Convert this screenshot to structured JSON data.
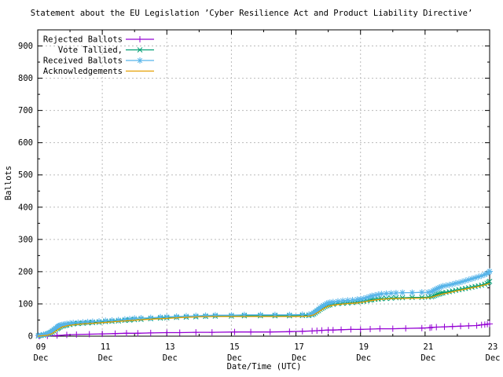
{
  "chart_data": {
    "type": "line",
    "title": "Statement about the EU Legislation ’Cyber Resilience Act and Product Liability Directive’",
    "xlabel": "Date/Time (UTC)",
    "ylabel": "Ballots",
    "xlim_days": [
      0,
      14
    ],
    "ylim": [
      0,
      950
    ],
    "grid": true,
    "legend_position": "inside top-left",
    "grid_color": "#bbbbbb",
    "border_color": "#000000",
    "x_ticks": [
      {
        "day": 0,
        "label": "09",
        "sublabel": "Dec"
      },
      {
        "day": 2,
        "label": "11",
        "sublabel": "Dec"
      },
      {
        "day": 4,
        "label": "13",
        "sublabel": "Dec"
      },
      {
        "day": 6,
        "label": "15",
        "sublabel": "Dec"
      },
      {
        "day": 8,
        "label": "17",
        "sublabel": "Dec"
      },
      {
        "day": 10,
        "label": "19",
        "sublabel": "Dec"
      },
      {
        "day": 12,
        "label": "21",
        "sublabel": "Dec"
      },
      {
        "day": 14,
        "label": "23",
        "sublabel": "Dec"
      }
    ],
    "x_minor_days": [
      1,
      3,
      5,
      7,
      9,
      11,
      13
    ],
    "y_ticks": [
      0,
      100,
      200,
      300,
      400,
      500,
      600,
      700,
      800,
      900
    ],
    "y_minor": [
      50,
      150,
      250,
      350,
      450,
      550,
      650,
      750,
      850
    ],
    "series": [
      {
        "name": "Rejected Ballots",
        "color": "#9400D3",
        "marker": "plus",
        "points": [
          [
            0.05,
            0
          ],
          [
            0.3,
            1
          ],
          [
            0.6,
            2
          ],
          [
            0.9,
            4
          ],
          [
            1.2,
            5
          ],
          [
            1.6,
            6
          ],
          [
            2.0,
            7
          ],
          [
            2.4,
            8
          ],
          [
            2.75,
            9
          ],
          [
            3.1,
            9
          ],
          [
            3.5,
            10
          ],
          [
            4.0,
            11
          ],
          [
            4.4,
            11
          ],
          [
            4.9,
            12
          ],
          [
            5.4,
            12
          ],
          [
            6.1,
            13
          ],
          [
            6.6,
            13
          ],
          [
            7.2,
            13
          ],
          [
            7.8,
            14
          ],
          [
            8.2,
            15
          ],
          [
            8.5,
            16
          ],
          [
            8.65,
            17
          ],
          [
            8.8,
            18
          ],
          [
            9.0,
            19
          ],
          [
            9.15,
            19
          ],
          [
            9.4,
            20
          ],
          [
            9.7,
            21
          ],
          [
            10.0,
            21
          ],
          [
            10.3,
            22
          ],
          [
            10.6,
            23
          ],
          [
            11.0,
            23
          ],
          [
            11.4,
            24
          ],
          [
            11.9,
            25
          ],
          [
            12.15,
            26
          ],
          [
            12.2,
            27
          ],
          [
            12.35,
            28
          ],
          [
            12.6,
            29
          ],
          [
            12.85,
            30
          ],
          [
            13.1,
            31
          ],
          [
            13.35,
            32
          ],
          [
            13.6,
            33
          ],
          [
            13.75,
            35
          ],
          [
            13.85,
            36
          ],
          [
            13.93,
            37
          ],
          [
            14.0,
            38
          ]
        ]
      },
      {
        "name": "Vote Tallied,",
        "color": "#009E73",
        "marker": "cross",
        "points": [
          [
            0.02,
            1
          ],
          [
            0.1,
            2
          ],
          [
            0.18,
            3
          ],
          [
            0.25,
            5
          ],
          [
            0.3,
            6
          ],
          [
            0.35,
            8
          ],
          [
            0.4,
            10
          ],
          [
            0.45,
            13
          ],
          [
            0.5,
            16
          ],
          [
            0.55,
            20
          ],
          [
            0.6,
            23
          ],
          [
            0.63,
            25
          ],
          [
            0.66,
            27
          ],
          [
            0.7,
            29
          ],
          [
            0.75,
            31
          ],
          [
            0.8,
            32
          ],
          [
            0.85,
            33
          ],
          [
            0.9,
            34
          ],
          [
            1.0,
            36
          ],
          [
            1.1,
            38
          ],
          [
            1.25,
            39
          ],
          [
            1.4,
            40
          ],
          [
            1.55,
            41
          ],
          [
            1.7,
            42
          ],
          [
            1.9,
            43
          ],
          [
            2.1,
            45
          ],
          [
            2.3,
            46
          ],
          [
            2.5,
            47
          ],
          [
            2.7,
            49
          ],
          [
            2.85,
            50
          ],
          [
            3.0,
            51
          ],
          [
            3.2,
            52
          ],
          [
            3.5,
            54
          ],
          [
            3.8,
            56
          ],
          [
            4.0,
            57
          ],
          [
            4.3,
            58
          ],
          [
            4.6,
            59
          ],
          [
            4.9,
            60
          ],
          [
            5.2,
            61
          ],
          [
            5.5,
            62
          ],
          [
            6.0,
            62
          ],
          [
            6.4,
            63
          ],
          [
            6.9,
            63
          ],
          [
            7.35,
            63
          ],
          [
            7.8,
            63
          ],
          [
            8.2,
            64
          ],
          [
            8.4,
            64
          ],
          [
            8.5,
            66
          ],
          [
            8.55,
            69
          ],
          [
            8.6,
            72
          ],
          [
            8.65,
            76
          ],
          [
            8.7,
            79
          ],
          [
            8.75,
            83
          ],
          [
            8.8,
            86
          ],
          [
            8.85,
            89
          ],
          [
            8.9,
            92
          ],
          [
            8.95,
            94
          ],
          [
            9.0,
            96
          ],
          [
            9.05,
            97
          ],
          [
            9.15,
            99
          ],
          [
            9.3,
            101
          ],
          [
            9.45,
            102
          ],
          [
            9.6,
            103
          ],
          [
            9.75,
            104
          ],
          [
            9.9,
            106
          ],
          [
            10.0,
            107
          ],
          [
            10.1,
            108
          ],
          [
            10.2,
            110
          ],
          [
            10.3,
            112
          ],
          [
            10.35,
            113
          ],
          [
            10.45,
            114
          ],
          [
            10.55,
            115
          ],
          [
            10.65,
            116
          ],
          [
            10.8,
            117
          ],
          [
            10.95,
            118
          ],
          [
            11.1,
            119
          ],
          [
            11.3,
            119
          ],
          [
            11.6,
            120
          ],
          [
            11.9,
            120
          ],
          [
            12.1,
            121
          ],
          [
            12.2,
            122
          ],
          [
            12.25,
            124
          ],
          [
            12.3,
            126
          ],
          [
            12.35,
            128
          ],
          [
            12.4,
            130
          ],
          [
            12.45,
            131
          ],
          [
            12.5,
            133
          ],
          [
            12.55,
            134
          ],
          [
            12.65,
            136
          ],
          [
            12.75,
            138
          ],
          [
            12.85,
            140
          ],
          [
            12.95,
            142
          ],
          [
            13.05,
            144
          ],
          [
            13.15,
            146
          ],
          [
            13.25,
            148
          ],
          [
            13.35,
            150
          ],
          [
            13.45,
            152
          ],
          [
            13.55,
            154
          ],
          [
            13.65,
            156
          ],
          [
            13.75,
            158
          ],
          [
            13.85,
            161
          ],
          [
            13.92,
            164
          ],
          [
            13.97,
            167
          ],
          [
            14.0,
            170
          ]
        ]
      },
      {
        "name": "Received Ballots",
        "color": "#56B4E9",
        "marker": "asterisk",
        "points": [
          [
            0.02,
            2
          ],
          [
            0.1,
            3
          ],
          [
            0.18,
            5
          ],
          [
            0.25,
            6
          ],
          [
            0.3,
            8
          ],
          [
            0.35,
            10
          ],
          [
            0.4,
            13
          ],
          [
            0.45,
            17
          ],
          [
            0.5,
            21
          ],
          [
            0.55,
            25
          ],
          [
            0.6,
            28
          ],
          [
            0.63,
            30
          ],
          [
            0.66,
            32
          ],
          [
            0.7,
            34
          ],
          [
            0.75,
            35
          ],
          [
            0.8,
            36
          ],
          [
            0.85,
            37
          ],
          [
            0.9,
            38
          ],
          [
            1.0,
            40
          ],
          [
            1.1,
            41
          ],
          [
            1.25,
            42
          ],
          [
            1.4,
            43
          ],
          [
            1.55,
            44
          ],
          [
            1.7,
            45
          ],
          [
            1.9,
            46
          ],
          [
            2.1,
            48
          ],
          [
            2.3,
            49
          ],
          [
            2.5,
            50
          ],
          [
            2.7,
            52
          ],
          [
            2.85,
            53
          ],
          [
            3.0,
            55
          ],
          [
            3.2,
            56
          ],
          [
            3.5,
            57
          ],
          [
            3.8,
            59
          ],
          [
            4.0,
            60
          ],
          [
            4.3,
            61
          ],
          [
            4.6,
            62
          ],
          [
            4.9,
            63
          ],
          [
            5.2,
            64
          ],
          [
            5.5,
            65
          ],
          [
            6.0,
            65
          ],
          [
            6.4,
            66
          ],
          [
            6.9,
            66
          ],
          [
            7.35,
            66
          ],
          [
            7.8,
            66
          ],
          [
            8.2,
            67
          ],
          [
            8.4,
            67
          ],
          [
            8.5,
            69
          ],
          [
            8.55,
            72
          ],
          [
            8.6,
            76
          ],
          [
            8.65,
            80
          ],
          [
            8.7,
            84
          ],
          [
            8.75,
            88
          ],
          [
            8.8,
            92
          ],
          [
            8.85,
            95
          ],
          [
            8.9,
            98
          ],
          [
            8.95,
            101
          ],
          [
            9.0,
            103
          ],
          [
            9.05,
            104
          ],
          [
            9.15,
            106
          ],
          [
            9.3,
            108
          ],
          [
            9.45,
            110
          ],
          [
            9.6,
            111
          ],
          [
            9.75,
            112
          ],
          [
            9.9,
            114
          ],
          [
            10.0,
            115
          ],
          [
            10.1,
            117
          ],
          [
            10.2,
            120
          ],
          [
            10.3,
            123
          ],
          [
            10.35,
            125
          ],
          [
            10.45,
            127
          ],
          [
            10.55,
            129
          ],
          [
            10.65,
            131
          ],
          [
            10.8,
            132
          ],
          [
            10.95,
            133
          ],
          [
            11.1,
            134
          ],
          [
            11.3,
            135
          ],
          [
            11.6,
            135
          ],
          [
            11.9,
            136
          ],
          [
            12.1,
            136
          ],
          [
            12.2,
            138
          ],
          [
            12.25,
            141
          ],
          [
            12.3,
            144
          ],
          [
            12.35,
            146
          ],
          [
            12.4,
            149
          ],
          [
            12.45,
            151
          ],
          [
            12.5,
            153
          ],
          [
            12.55,
            155
          ],
          [
            12.65,
            157
          ],
          [
            12.75,
            159
          ],
          [
            12.85,
            161
          ],
          [
            12.95,
            164
          ],
          [
            13.05,
            166
          ],
          [
            13.15,
            169
          ],
          [
            13.25,
            172
          ],
          [
            13.35,
            175
          ],
          [
            13.45,
            178
          ],
          [
            13.55,
            181
          ],
          [
            13.65,
            184
          ],
          [
            13.75,
            187
          ],
          [
            13.85,
            191
          ],
          [
            13.92,
            195
          ],
          [
            13.97,
            198
          ],
          [
            14.0,
            201
          ]
        ]
      },
      {
        "name": "Acknowledgements",
        "color": "#E69F00",
        "marker": "none",
        "points": [
          [
            0.0,
            0
          ],
          [
            0.3,
            3
          ],
          [
            0.45,
            8
          ],
          [
            0.55,
            15
          ],
          [
            0.65,
            22
          ],
          [
            0.75,
            28
          ],
          [
            0.9,
            32
          ],
          [
            1.1,
            35
          ],
          [
            1.4,
            38
          ],
          [
            1.7,
            40
          ],
          [
            2.0,
            42
          ],
          [
            2.4,
            45
          ],
          [
            2.8,
            48
          ],
          [
            3.2,
            51
          ],
          [
            3.6,
            53
          ],
          [
            4.0,
            55
          ],
          [
            4.5,
            58
          ],
          [
            5.0,
            60
          ],
          [
            5.5,
            61
          ],
          [
            6.0,
            61
          ],
          [
            7.0,
            61
          ],
          [
            8.0,
            61
          ],
          [
            8.4,
            62
          ],
          [
            8.55,
            66
          ],
          [
            8.7,
            75
          ],
          [
            8.85,
            85
          ],
          [
            9.0,
            93
          ],
          [
            9.2,
            97
          ],
          [
            9.5,
            100
          ],
          [
            9.9,
            103
          ],
          [
            10.1,
            106
          ],
          [
            10.3,
            110
          ],
          [
            10.6,
            114
          ],
          [
            10.9,
            116
          ],
          [
            11.3,
            117
          ],
          [
            11.9,
            118
          ],
          [
            12.15,
            119
          ],
          [
            12.3,
            124
          ],
          [
            12.5,
            130
          ],
          [
            12.75,
            135
          ],
          [
            13.0,
            141
          ],
          [
            13.3,
            147
          ],
          [
            13.6,
            153
          ],
          [
            13.85,
            159
          ],
          [
            14.0,
            164
          ]
        ]
      }
    ]
  }
}
